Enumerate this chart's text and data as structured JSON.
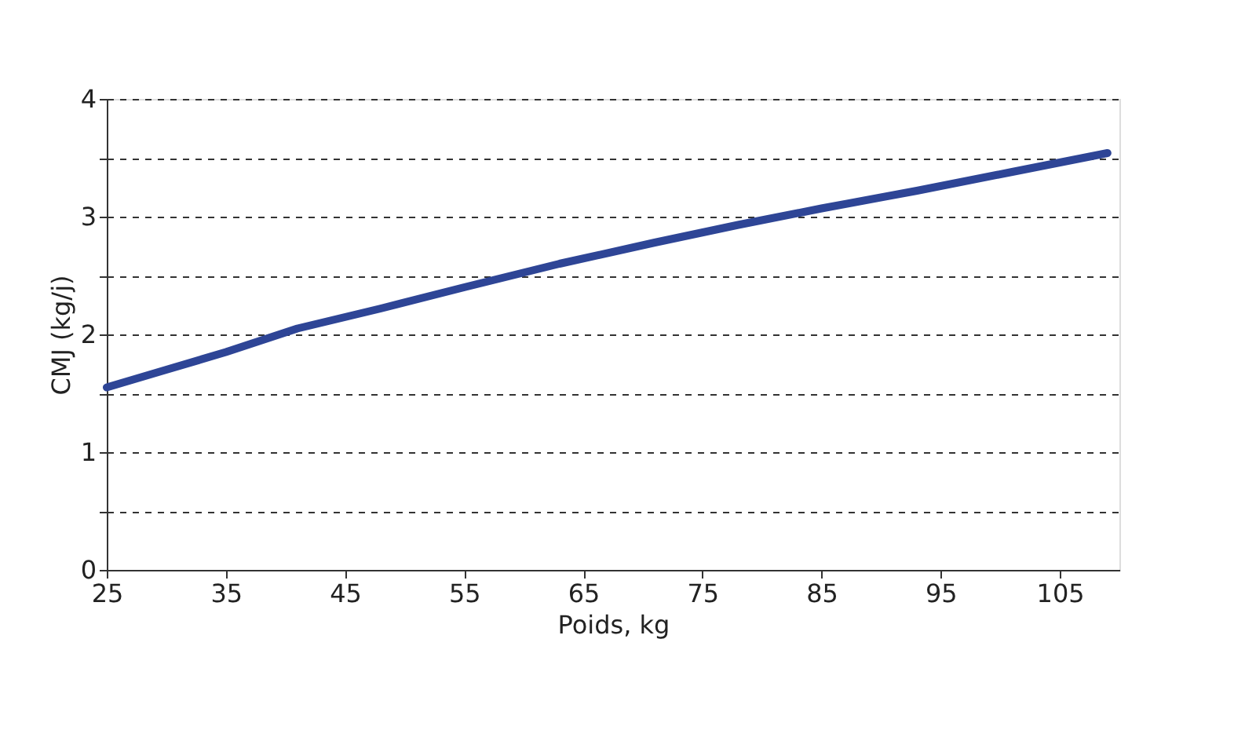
{
  "chart_data": {
    "type": "line",
    "xlabel": "Poids, kg",
    "ylabel": "CMJ (kg/j)",
    "x": [
      25,
      30,
      35,
      41,
      48,
      55,
      63,
      71,
      78,
      85,
      93,
      101,
      109
    ],
    "series": [
      {
        "color": "#2e4596",
        "values": [
          1.55,
          1.7,
          1.85,
          2.05,
          2.22,
          2.4,
          2.6,
          2.78,
          2.93,
          3.07,
          3.22,
          3.38,
          3.54
        ]
      }
    ],
    "xlim": [
      25,
      110
    ],
    "xticks": [
      25,
      35,
      45,
      55,
      65,
      75,
      85,
      95,
      105
    ],
    "ylim": [
      0,
      4
    ],
    "yticks": [
      0,
      {
        "value": 0.5,
        "label": null
      },
      1,
      {
        "value": 1.5,
        "label": null
      },
      2,
      {
        "value": 2.5,
        "label": null
      },
      3,
      {
        "value": 3.5,
        "label": null
      },
      4
    ],
    "grid": "y",
    "line_style": "solid",
    "marker": "none"
  }
}
